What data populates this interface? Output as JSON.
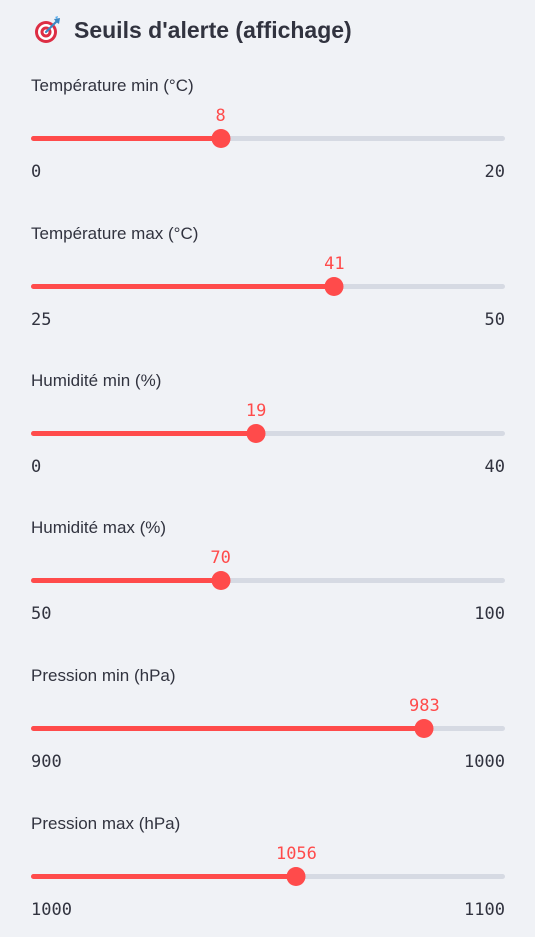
{
  "header": {
    "icon": "target-dart-icon",
    "title": "Seuils d'alerte (affichage)"
  },
  "colors": {
    "accent": "#ff4b4b",
    "track": "#d6dae3",
    "background": "#f0f2f6",
    "text": "#31333f"
  },
  "sliders": [
    {
      "label": "Température min (°C)",
      "value": "8",
      "min": "0",
      "max": "20"
    },
    {
      "label": "Température max (°C)",
      "value": "41",
      "min": "25",
      "max": "50"
    },
    {
      "label": "Humidité min (%)",
      "value": "19",
      "min": "0",
      "max": "40"
    },
    {
      "label": "Humidité max (%)",
      "value": "70",
      "min": "50",
      "max": "100"
    },
    {
      "label": "Pression min (hPa)",
      "value": "983",
      "min": "900",
      "max": "1000"
    },
    {
      "label": "Pression max (hPa)",
      "value": "1056",
      "min": "1000",
      "max": "1100"
    }
  ]
}
